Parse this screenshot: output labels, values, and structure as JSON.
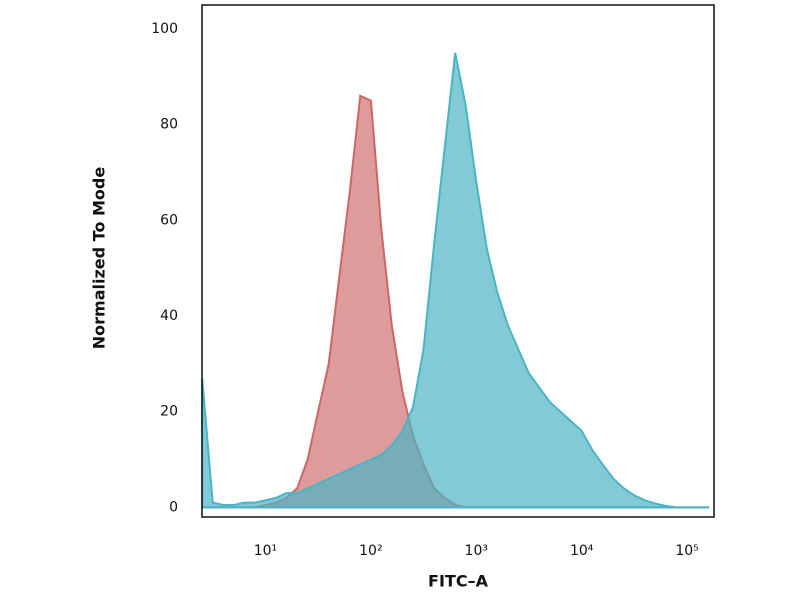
{
  "chart_data": {
    "type": "area",
    "xlabel": "FITC–A",
    "ylabel": "Normalized To Mode",
    "xscale": "log",
    "xlim": [
      2.5,
      180000
    ],
    "ylim": [
      -2,
      105
    ],
    "xticks": [
      {
        "value": 10,
        "label": "10¹"
      },
      {
        "value": 100,
        "label": "10²"
      },
      {
        "value": 1000,
        "label": "10³"
      },
      {
        "value": 10000,
        "label": "10⁴"
      },
      {
        "value": 100000,
        "label": "10⁵"
      }
    ],
    "yticks": [
      0,
      20,
      40,
      60,
      80,
      100
    ],
    "x": [
      2.51,
      3.16,
      3.98,
      5.01,
      6.31,
      7.94,
      10,
      12.6,
      15.8,
      20,
      25.1,
      31.6,
      39.8,
      50.1,
      63.1,
      79.4,
      100,
      126,
      158,
      200,
      251,
      316,
      398,
      501,
      631,
      794,
      1000,
      1260,
      1580,
      2000,
      2510,
      3160,
      3980,
      5010,
      6310,
      7940,
      10000,
      12600,
      15800,
      20000,
      25100,
      31600,
      39800,
      50100,
      63100,
      79400,
      100000,
      126000,
      158000
    ],
    "series": [
      {
        "color": "#ff8080",
        "values": [
          0,
          0,
          0,
          0,
          0,
          0,
          0.5,
          1,
          2,
          4,
          10,
          20,
          30,
          48,
          66,
          86,
          85,
          58,
          38,
          24,
          15,
          9,
          4,
          2,
          0.5,
          0,
          0,
          0,
          0,
          0,
          0,
          0,
          0,
          0,
          0,
          0,
          0,
          0,
          0,
          0,
          0,
          0,
          0,
          0,
          0,
          0,
          0,
          0,
          0
        ]
      },
      {
        "color": "#5ee0f7",
        "values": [
          27,
          1,
          0.5,
          0.5,
          1,
          1,
          1.5,
          2,
          3,
          3,
          4,
          5,
          6,
          7,
          8,
          9,
          10,
          11,
          13,
          16,
          21,
          33,
          55,
          75,
          95,
          84,
          68,
          54,
          45,
          38,
          33,
          28,
          25,
          22,
          20,
          18,
          16,
          12,
          9,
          6,
          4,
          2.5,
          1.5,
          0.8,
          0.3,
          0,
          0,
          0,
          0
        ]
      }
    ]
  }
}
